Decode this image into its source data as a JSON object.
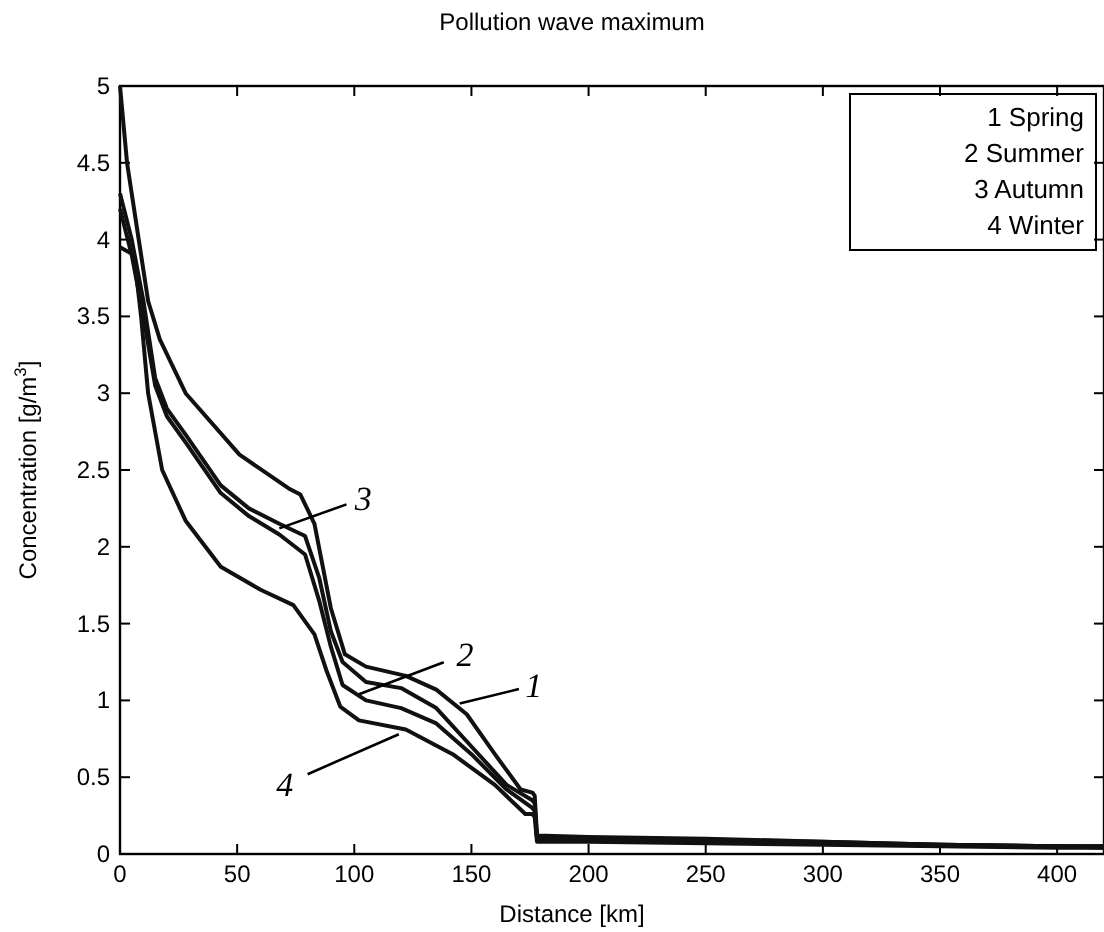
{
  "chart_data": {
    "type": "line",
    "title": "Pollution wave maximum",
    "xlabel": "Distance [km]",
    "ylabel": "Concentration [g/m$^{3}$]",
    "xlim": [
      0,
      420
    ],
    "ylim": [
      0,
      5
    ],
    "xticks": [
      0,
      50,
      100,
      150,
      200,
      250,
      300,
      350,
      400
    ],
    "yticks": [
      0,
      0.5,
      1,
      1.5,
      2,
      2.5,
      3,
      3.5,
      4,
      4.5,
      5
    ],
    "grid": false,
    "marker": "none",
    "line_style": "solid",
    "series": [
      {
        "color": "#111111",
        "x": [
          0,
          3,
          8,
          12,
          17,
          28,
          51,
          72,
          77,
          83,
          90,
          96,
          105,
          122,
          135,
          148,
          160,
          171,
          176,
          177,
          178,
          200,
          250,
          300,
          350,
          400,
          420
        ],
        "values": [
          5.0,
          4.5,
          4.0,
          3.6,
          3.35,
          3.0,
          2.6,
          2.38,
          2.34,
          2.15,
          1.6,
          1.3,
          1.22,
          1.16,
          1.07,
          0.91,
          0.65,
          0.42,
          0.4,
          0.38,
          0.12,
          0.11,
          0.1,
          0.08,
          0.06,
          0.05,
          0.05
        ]
      },
      {
        "color": "#111111",
        "x": [
          0,
          5,
          10,
          15,
          20,
          28,
          43,
          55,
          68,
          79,
          85,
          90,
          95,
          105,
          120,
          135,
          150,
          165,
          176,
          177,
          178,
          200,
          250,
          300,
          350,
          400,
          420
        ],
        "values": [
          4.2,
          3.9,
          3.5,
          3.05,
          2.85,
          2.68,
          2.35,
          2.2,
          2.08,
          1.95,
          1.65,
          1.35,
          1.1,
          1.0,
          0.95,
          0.85,
          0.65,
          0.42,
          0.3,
          0.28,
          0.1,
          0.1,
          0.09,
          0.07,
          0.06,
          0.05,
          0.04
        ]
      },
      {
        "color": "#111111",
        "x": [
          0,
          5,
          10,
          15,
          20,
          28,
          43,
          55,
          68,
          79,
          85,
          90,
          95,
          105,
          120,
          135,
          150,
          165,
          176,
          177,
          178,
          200,
          250,
          300,
          350,
          400,
          420
        ],
        "values": [
          4.3,
          4.0,
          3.6,
          3.1,
          2.9,
          2.73,
          2.4,
          2.25,
          2.15,
          2.07,
          1.8,
          1.45,
          1.25,
          1.12,
          1.08,
          0.95,
          0.7,
          0.45,
          0.35,
          0.33,
          0.1,
          0.1,
          0.09,
          0.08,
          0.06,
          0.05,
          0.05
        ]
      },
      {
        "color": "#111111",
        "x": [
          0,
          6,
          9,
          12,
          18,
          28,
          43,
          60,
          74,
          83,
          88,
          94,
          102,
          122,
          142,
          160,
          173,
          176,
          177,
          178,
          200,
          250,
          300,
          350,
          400,
          420
        ],
        "values": [
          3.95,
          3.9,
          3.5,
          3.0,
          2.5,
          2.17,
          1.87,
          1.72,
          1.62,
          1.43,
          1.2,
          0.96,
          0.87,
          0.81,
          0.65,
          0.45,
          0.26,
          0.26,
          0.24,
          0.08,
          0.08,
          0.07,
          0.06,
          0.05,
          0.04,
          0.04
        ]
      }
    ],
    "annotations": [
      "1 Spring",
      "2 Summer",
      "3 Autumn",
      "4 Winter",
      {
        "text": "3",
        "x": 68,
        "y": 2.12
      },
      {
        "text": "2",
        "x": 102,
        "y": 1.04
      },
      {
        "text": "1",
        "x": 145,
        "y": 0.98
      },
      {
        "text": "4",
        "x": 119,
        "y": 0.78
      }
    ]
  }
}
